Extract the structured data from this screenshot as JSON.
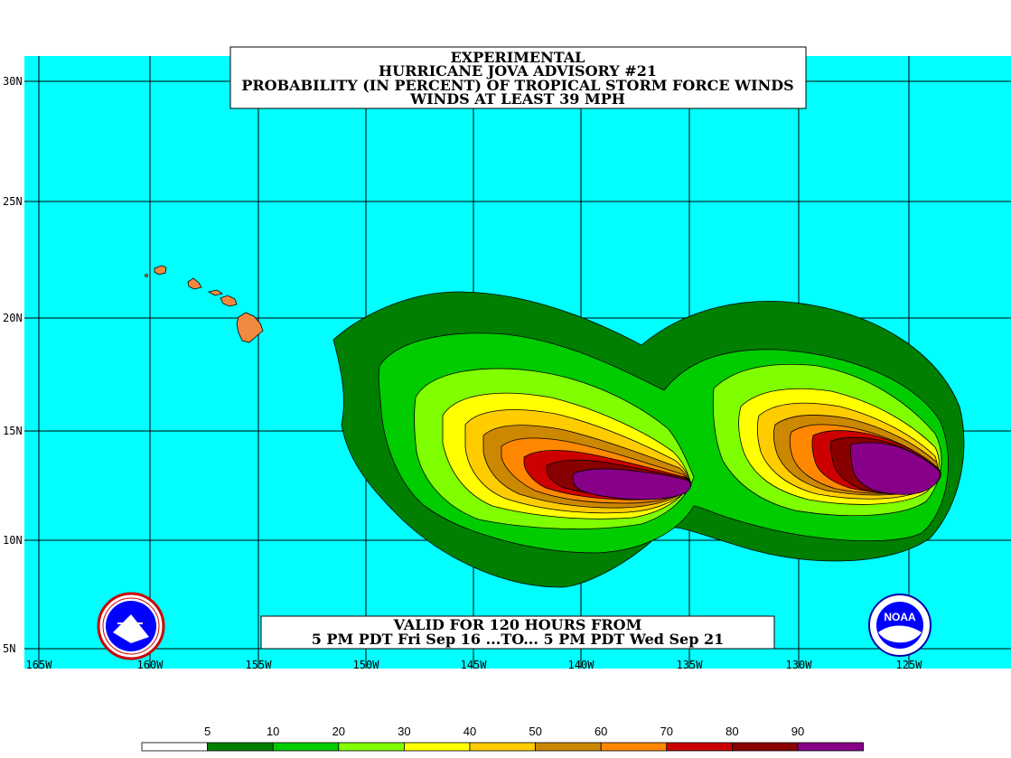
{
  "title": {
    "line1": "EXPERIMENTAL",
    "line2": "HURRICANE JOVA ADVISORY #21",
    "line3": "PROBABILITY (IN PERCENT) OF TROPICAL STORM FORCE WINDS",
    "line4": "WINDS AT LEAST 39 MPH"
  },
  "valid": {
    "line1": "VALID FOR 120 HOURS FROM",
    "line2": "5 PM PDT Fri Sep 16 ...TO... 5 PM PDT Wed Sep 21"
  },
  "axes": {
    "lon_labels": [
      "165W",
      "160W",
      "155W",
      "150W",
      "145W",
      "140W",
      "135W",
      "130W",
      "125W"
    ],
    "lat_labels": [
      "30N",
      "25N",
      "20N",
      "15N",
      "10N",
      "5N"
    ]
  },
  "legend": {
    "labels": [
      "5",
      "10",
      "20",
      "30",
      "40",
      "50",
      "60",
      "70",
      "80",
      "90"
    ],
    "colors": [
      "#ffffff",
      "#007f00",
      "#00cc00",
      "#7fff00",
      "#ffff00",
      "#ffcc00",
      "#cc8800",
      "#ff8800",
      "#cc0000",
      "#880000",
      "#880088"
    ]
  },
  "colors": {
    "ocean": "#00ffff",
    "land": "#f08a40",
    "grid": "#000000"
  },
  "logos": {
    "nws": "nws-logo",
    "noaa": "NOAA"
  }
}
